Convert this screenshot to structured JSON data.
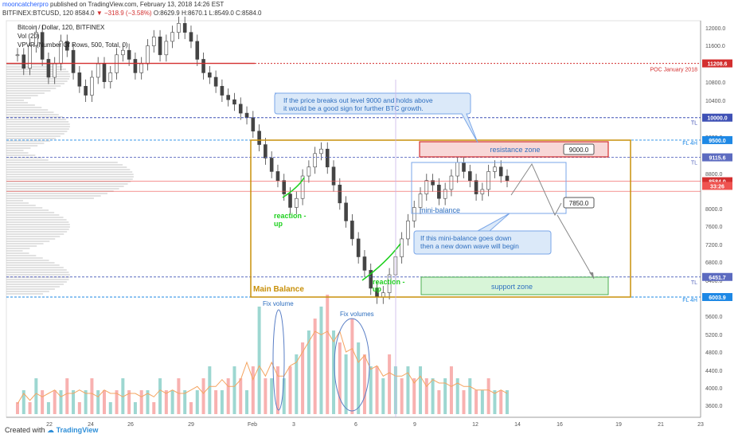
{
  "header": {
    "publisher": "mooncatcherpro",
    "published_text": " published on TradingView.com, February 13, 2018 14:26 EST"
  },
  "symbol_line": {
    "symbol": "BITFINEX:BTCUSD, 120",
    "last": "8584.0",
    "change": "▼ −318.9 (−3.58%)",
    "ohlc": "O:8629.9 H:8670.1 L:8549.0 C:8584.0"
  },
  "indicators": {
    "title": "Bitcoin / Dollar, 120, BITFINEX",
    "vol": "Vol (20)",
    "vpvr": "VPVR (Number Of Rows, 500, Total, 0)"
  },
  "footer": {
    "created_with": "Created with",
    "brand": "TradingView"
  },
  "colors": {
    "up": "#26a69a",
    "down": "#ef5350",
    "balance_box": "#c8900a",
    "resistance_fill": "#f8d7d7",
    "resistance_stroke": "#d32f2f",
    "support_fill": "#d8f5d8",
    "support_stroke": "#4caf50",
    "annotation_blue": "#2f6fbf",
    "reaction_green": "#1fd01f",
    "poc_red": "#d32f2f"
  },
  "chart_data": {
    "type": "candlestick",
    "price_axis": {
      "range": [
        3000,
        12400
      ],
      "ticks": [
        "12000.0",
        "11600.0",
        "10800.0",
        "10400.0",
        "9600.0",
        "8800.0",
        "8000.0",
        "7600.0",
        "7200.0",
        "6800.0",
        "6400.0",
        "5600.0",
        "5200.0",
        "4800.0",
        "4400.0",
        "4000.0",
        "3600.0"
      ]
    },
    "price_labels": [
      {
        "value": 11208.6,
        "text": "11208.6",
        "color": "#d32f2f"
      },
      {
        "value": 10000.0,
        "text": "10000.0",
        "color": "#3f51b5"
      },
      {
        "value": 9500.0,
        "text": "9500.0",
        "color": "#1e88e5"
      },
      {
        "value": 9115.6,
        "text": "9115.6",
        "color": "#5c6bc0"
      },
      {
        "value": 8584.0,
        "text": "8584.0",
        "color": "#d32f2f"
      },
      {
        "value": 8480.0,
        "text": "33:26",
        "color": "#ef5350"
      },
      {
        "value": 6451.7,
        "text": "6451.7",
        "color": "#5c6bc0"
      },
      {
        "value": 6003.9,
        "text": "6003.9",
        "color": "#1e88e5"
      }
    ],
    "time_axis": {
      "labels": [
        "22",
        "24",
        "26",
        "29",
        "Feb",
        "3",
        "6",
        "9",
        "12",
        "14",
        "16",
        "19",
        "21",
        "23"
      ]
    },
    "levels": [
      {
        "value": 11208.6,
        "text": "POC January 2018",
        "style": "solid-then-dotted",
        "color": "#d32f2f"
      },
      {
        "value": 10000.0,
        "text": "TL",
        "style": "dashed",
        "color": "#3f51b5"
      },
      {
        "value": 9500.0,
        "text": "FL 4H",
        "style": "dashed",
        "color": "#1e88e5"
      },
      {
        "value": 9115.6,
        "text": "TL",
        "style": "dashed",
        "color": "#5c6bc0"
      },
      {
        "value": 6451.7,
        "text": "TL",
        "style": "dashed",
        "color": "#5c6bc0"
      },
      {
        "value": 6003.9,
        "text": "FL 4H",
        "style": "dashed",
        "color": "#1e88e5"
      }
    ],
    "candles_close": [
      11400,
      11100,
      11600,
      11900,
      11300,
      10900,
      11200,
      11700,
      11500,
      11000,
      10700,
      10500,
      10900,
      11200,
      10800,
      11000,
      11400,
      11500,
      11300,
      11000,
      11200,
      11600,
      11800,
      11400,
      11700,
      11900,
      12100,
      11900,
      11700,
      11300,
      11000,
      10900,
      10700,
      10500,
      10400,
      10300,
      10100,
      10000,
      9700,
      9400,
      9100,
      8800,
      8600,
      8300,
      8000,
      8200,
      8700,
      8900,
      9200,
      9300,
      8900,
      8500,
      8100,
      7700,
      7300,
      6900,
      6600,
      6200,
      6000,
      6100,
      6500,
      6900,
      7300,
      7700,
      8000,
      8300,
      8600,
      8500,
      8200,
      8400,
      8700,
      9000,
      8800,
      8600,
      8300,
      8400,
      8800,
      8900,
      8700,
      8600
    ],
    "volume_axis": {
      "range": [
        3400,
        6000
      ]
    },
    "volume_levels": [
      1,
      2,
      1,
      3,
      2,
      1,
      2,
      2,
      3,
      2,
      1,
      2,
      3,
      2,
      2,
      1,
      2,
      3,
      2,
      1,
      2,
      2,
      1,
      3,
      2,
      2,
      3,
      2,
      1,
      2,
      3,
      4,
      2,
      2,
      3,
      4,
      3,
      2,
      4,
      9,
      3,
      3,
      4,
      3,
      4,
      5,
      6,
      7,
      8,
      9,
      10,
      7,
      6,
      5,
      8,
      6,
      5,
      4,
      4,
      3,
      5,
      4,
      3,
      4,
      3,
      4,
      3,
      3,
      2,
      3,
      4,
      3,
      2,
      3,
      2,
      2,
      3,
      2,
      2,
      2
    ],
    "annotations": [
      {
        "text": "If the price breaks out level 9000 and holds above",
        "kind": "callout"
      },
      {
        "text": "it would be a good sign for further BTC growth.",
        "kind": "callout"
      },
      {
        "text": "resistance zone",
        "kind": "zone"
      },
      {
        "text": "9000.0",
        "kind": "target"
      },
      {
        "text": "7850.0",
        "kind": "target"
      },
      {
        "text": "mini-balance",
        "kind": "label"
      },
      {
        "text": "If this mini-balance goes down",
        "kind": "callout"
      },
      {
        "text": "then a new down wave will begin",
        "kind": "callout"
      },
      {
        "text": "support zone",
        "kind": "zone"
      },
      {
        "text": "Main Balance",
        "kind": "label"
      },
      {
        "text": "reaction -",
        "kind": "label"
      },
      {
        "text": "up",
        "kind": "label"
      },
      {
        "text": "reaction -",
        "kind": "label"
      },
      {
        "text": "up",
        "kind": "label"
      },
      {
        "text": "Fix volume",
        "kind": "label"
      },
      {
        "text": "Fix volumes",
        "kind": "label"
      }
    ]
  }
}
